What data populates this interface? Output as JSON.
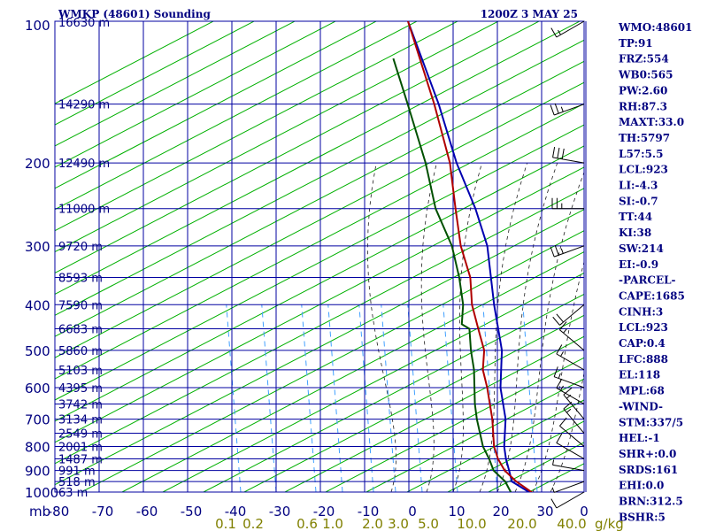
{
  "header": {
    "title": "WMKP (48601) Sounding",
    "time": "1200Z  3 MAY 25"
  },
  "chart_data": {
    "type": "line",
    "title": "WMKP (48601) Sounding",
    "xlabel": "",
    "ylabel": "",
    "pressure_axis_unit": "mb",
    "mixing_ratio_unit": "g/kg",
    "pressure_ticks": [
      "100",
      "200",
      "300",
      "400",
      "500",
      "600",
      "700",
      "800",
      "900",
      "1000"
    ],
    "temp_ticks": [
      "-80",
      "-70",
      "-60",
      "-50",
      "-40",
      "-30",
      "-20",
      "-10",
      "0",
      "10",
      "20",
      "30"
    ],
    "mixing_ratio_ticks": [
      "0.1",
      "0.2",
      "0.6",
      "1.0",
      "2.0",
      "3.0",
      "5.0",
      "10.0",
      "20.0",
      "40.0"
    ],
    "height_labels": [
      {
        "p": 100,
        "label": "16630 m"
      },
      {
        "p": 150,
        "label": "14290 m"
      },
      {
        "p": 200,
        "label": "12490 m"
      },
      {
        "p": 250,
        "label": "11000 m"
      },
      {
        "p": 300,
        "label": "9720 m"
      },
      {
        "p": 350,
        "label": "8593 m"
      },
      {
        "p": 400,
        "label": "7590 m"
      },
      {
        "p": 450,
        "label": "6683 m"
      },
      {
        "p": 500,
        "label": "5860 m"
      },
      {
        "p": 550,
        "label": "5103 m"
      },
      {
        "p": 600,
        "label": "4395 m"
      },
      {
        "p": 650,
        "label": "3742 m"
      },
      {
        "p": 700,
        "label": "3134 m"
      },
      {
        "p": 750,
        "label": "2549 m"
      },
      {
        "p": 800,
        "label": "2001 m"
      },
      {
        "p": 850,
        "label": "1487 m"
      },
      {
        "p": 900,
        "label": "991 m"
      },
      {
        "p": 950,
        "label": "518 m"
      },
      {
        "p": 1000,
        "label": "63 m"
      }
    ],
    "pressure_range": [
      1000,
      100
    ],
    "temp_range": [
      -80,
      40
    ],
    "series": [
      {
        "key": "parcel",
        "color": "#0000b0",
        "points": [
          [
            1008,
            28.0
          ],
          [
            950,
            21.5
          ],
          [
            900,
            19.0
          ],
          [
            850,
            16.3
          ],
          [
            800,
            13.8
          ],
          [
            700,
            9.5
          ],
          [
            600,
            3.0
          ],
          [
            500,
            -3.0
          ],
          [
            400,
            -12.5
          ],
          [
            300,
            -24.0
          ],
          [
            250,
            -33.0
          ],
          [
            200,
            -45.0
          ],
          [
            150,
            -59.0
          ],
          [
            100,
            -80.0
          ]
        ]
      },
      {
        "key": "temperature",
        "color": "#b00000",
        "points": [
          [
            1008,
            28.5
          ],
          [
            950,
            22.5
          ],
          [
            900,
            18.0
          ],
          [
            850,
            14.5
          ],
          [
            800,
            11.5
          ],
          [
            700,
            6.5
          ],
          [
            600,
            0.0
          ],
          [
            550,
            -4.0
          ],
          [
            500,
            -7.0
          ],
          [
            450,
            -12.0
          ],
          [
            400,
            -17.5
          ],
          [
            350,
            -22.5
          ],
          [
            300,
            -30.0
          ],
          [
            250,
            -37.5
          ],
          [
            200,
            -46.5
          ],
          [
            150,
            -60.0
          ],
          [
            100,
            -80.0
          ]
        ]
      },
      {
        "key": "dewpoint",
        "color": "#005000",
        "points": [
          [
            1008,
            23.5
          ],
          [
            950,
            20.0
          ],
          [
            900,
            15.5
          ],
          [
            850,
            12.5
          ],
          [
            800,
            9.0
          ],
          [
            700,
            3.0
          ],
          [
            650,
            0.0
          ],
          [
            550,
            -6.0
          ],
          [
            500,
            -10.0
          ],
          [
            450,
            -14.0
          ],
          [
            440,
            -16.5
          ],
          [
            400,
            -19.5
          ],
          [
            350,
            -25.0
          ],
          [
            300,
            -32.0
          ],
          [
            250,
            -42.0
          ],
          [
            200,
            -52.0
          ],
          [
            150,
            -66.0
          ],
          [
            120,
            -77.0
          ]
        ]
      }
    ],
    "wind_barbs": [
      {
        "p": 1000,
        "dir": 240,
        "spd": 10
      },
      {
        "p": 950,
        "dir": 250,
        "spd": 5
      },
      {
        "p": 900,
        "dir": 280,
        "spd": 5
      },
      {
        "p": 850,
        "dir": 300,
        "spd": 10
      },
      {
        "p": 800,
        "dir": 310,
        "spd": 10
      },
      {
        "p": 750,
        "dir": 320,
        "spd": 15
      },
      {
        "p": 700,
        "dir": 320,
        "spd": 15
      },
      {
        "p": 650,
        "dir": 300,
        "spd": 15
      },
      {
        "p": 600,
        "dir": 290,
        "spd": 15
      },
      {
        "p": 550,
        "dir": 300,
        "spd": 15
      },
      {
        "p": 500,
        "dir": 310,
        "spd": 15
      },
      {
        "p": 400,
        "dir": 230,
        "spd": 20
      },
      {
        "p": 300,
        "dir": 250,
        "spd": 25
      },
      {
        "p": 250,
        "dir": 270,
        "spd": 25
      },
      {
        "p": 200,
        "dir": 280,
        "spd": 30
      },
      {
        "p": 150,
        "dir": 250,
        "spd": 25
      },
      {
        "p": 100,
        "dir": 240,
        "spd": 15
      }
    ]
  },
  "indices": [
    "WMO:48601",
    "TP:91",
    "FRZ:554",
    "WB0:565",
    "PW:2.60",
    "RH:87.3",
    "MAXT:33.0",
    "TH:5797",
    "L57:5.5",
    "LCL:923",
    "LI:-4.3",
    "SI:-0.7",
    "TT:44",
    "KI:38",
    "SW:214",
    "EI:-0.9",
    "-PARCEL-",
    "CAPE:1685",
    "CINH:3",
    "LCL:923",
    "CAP:0.4",
    "LFC:888",
    "EL:118",
    "MPL:68",
    "-WIND-",
    "STM:337/5",
    "HEL:-1",
    "SHR+:0.0",
    "SRDS:161",
    "EHI:0.0",
    "BRN:312.5",
    "BSHR:5"
  ],
  "colors": {
    "grid": "#0000a0",
    "dry_adiabat": "#00b000",
    "moist_adiabat": "#202020",
    "mixing_ratio": "#40a0ff",
    "temperature": "#b00000",
    "dewpoint": "#005000",
    "parcel": "#0000b0"
  }
}
